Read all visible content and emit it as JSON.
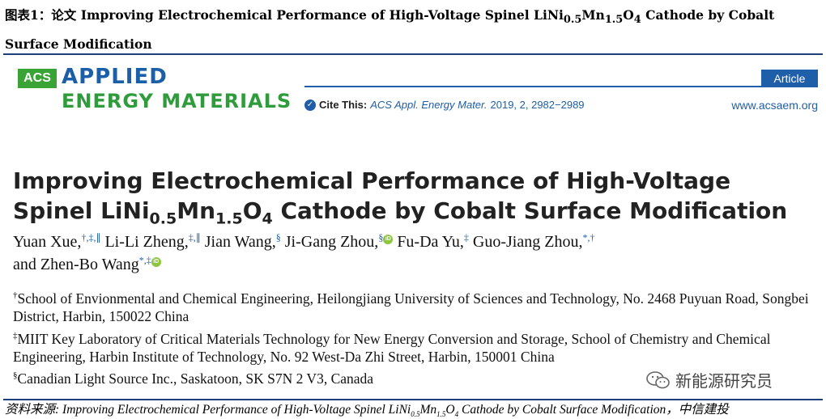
{
  "caption": {
    "prefix": "图表1：",
    "word": "论文",
    "title_a": "Improving Electrochemical Performance of High-Voltage Spinel LiNi",
    "sub1": "0.5",
    "title_b": "Mn",
    "sub2": "1.5",
    "title_c": "O",
    "sub3": "4",
    "title_d": " Cathode by Cobalt Surface Modification"
  },
  "journal": {
    "acs": "ACS",
    "line1": "APPLIED",
    "line2": "ENERGY MATERIALS",
    "article_type": "Article",
    "cite_label": "Cite This:",
    "cite_journal": "ACS Appl. Energy Mater.",
    "cite_volume": "2019, 2, 2982−2989",
    "website": "www.acsaem.org"
  },
  "paper": {
    "title_a": "Improving Electrochemical Performance of High-Voltage Spinel LiNi",
    "sub1": "0.5",
    "title_b": "Mn",
    "sub2": "1.5",
    "title_c": "O",
    "sub3": "4",
    "title_d": " Cathode by Cobalt Surface Modification"
  },
  "authors": [
    {
      "name": "Yuan Xue,",
      "marks": "†,‡,∥",
      "orcid": false
    },
    {
      "name": "Li-Li Zheng,",
      "marks": "‡,∥",
      "orcid": false
    },
    {
      "name": "Jian Wang,",
      "marks": "§",
      "orcid": false
    },
    {
      "name": "Ji-Gang Zhou,",
      "marks": "§",
      "orcid": true
    },
    {
      "name": "Fu-Da Yu,",
      "marks": "‡",
      "orcid": false
    },
    {
      "name": "Guo-Jiang Zhou,",
      "marks": "*,†",
      "orcid": false
    },
    {
      "name": "and Zhen-Bo Wang",
      "marks": "*,‡",
      "orcid": true
    }
  ],
  "orcid_text": "iD",
  "affiliations": [
    {
      "mark": "†",
      "text": "School of Envionmental and Chemical Engineering, Heilongjiang University of Sciences and Technology, No. 2468 Puyuan Road, Songbei District, Harbin, 150022 China"
    },
    {
      "mark": "‡",
      "text": "MIIT Key Laboratory of Critical Materials Technology for New Energy Conversion and Storage, School of Chemistry and Chemical Engineering, Harbin Institute of Technology, No. 92 West-Da Zhi Street, Harbin, 150001 China"
    },
    {
      "mark": "§",
      "text": "Canadian Light Source Inc., Saskatoon, SK S7N 2 V3, Canada"
    }
  ],
  "source": {
    "prefix": "资料来源: Improving Electrochemical Performance of High-Voltage Spinel LiNi",
    "sub1": "0.5",
    "mid1": "Mn",
    "sub2": "1.5",
    "mid2": "O",
    "sub3": "4",
    "suffix": " Cathode by Cobalt Surface Modification，中信建投"
  },
  "watermark": "新能源研究员",
  "colors": {
    "brand_blue": "#1f5ea8",
    "brand_green": "#2e9c3a",
    "orcid_green": "#8cc63f"
  }
}
